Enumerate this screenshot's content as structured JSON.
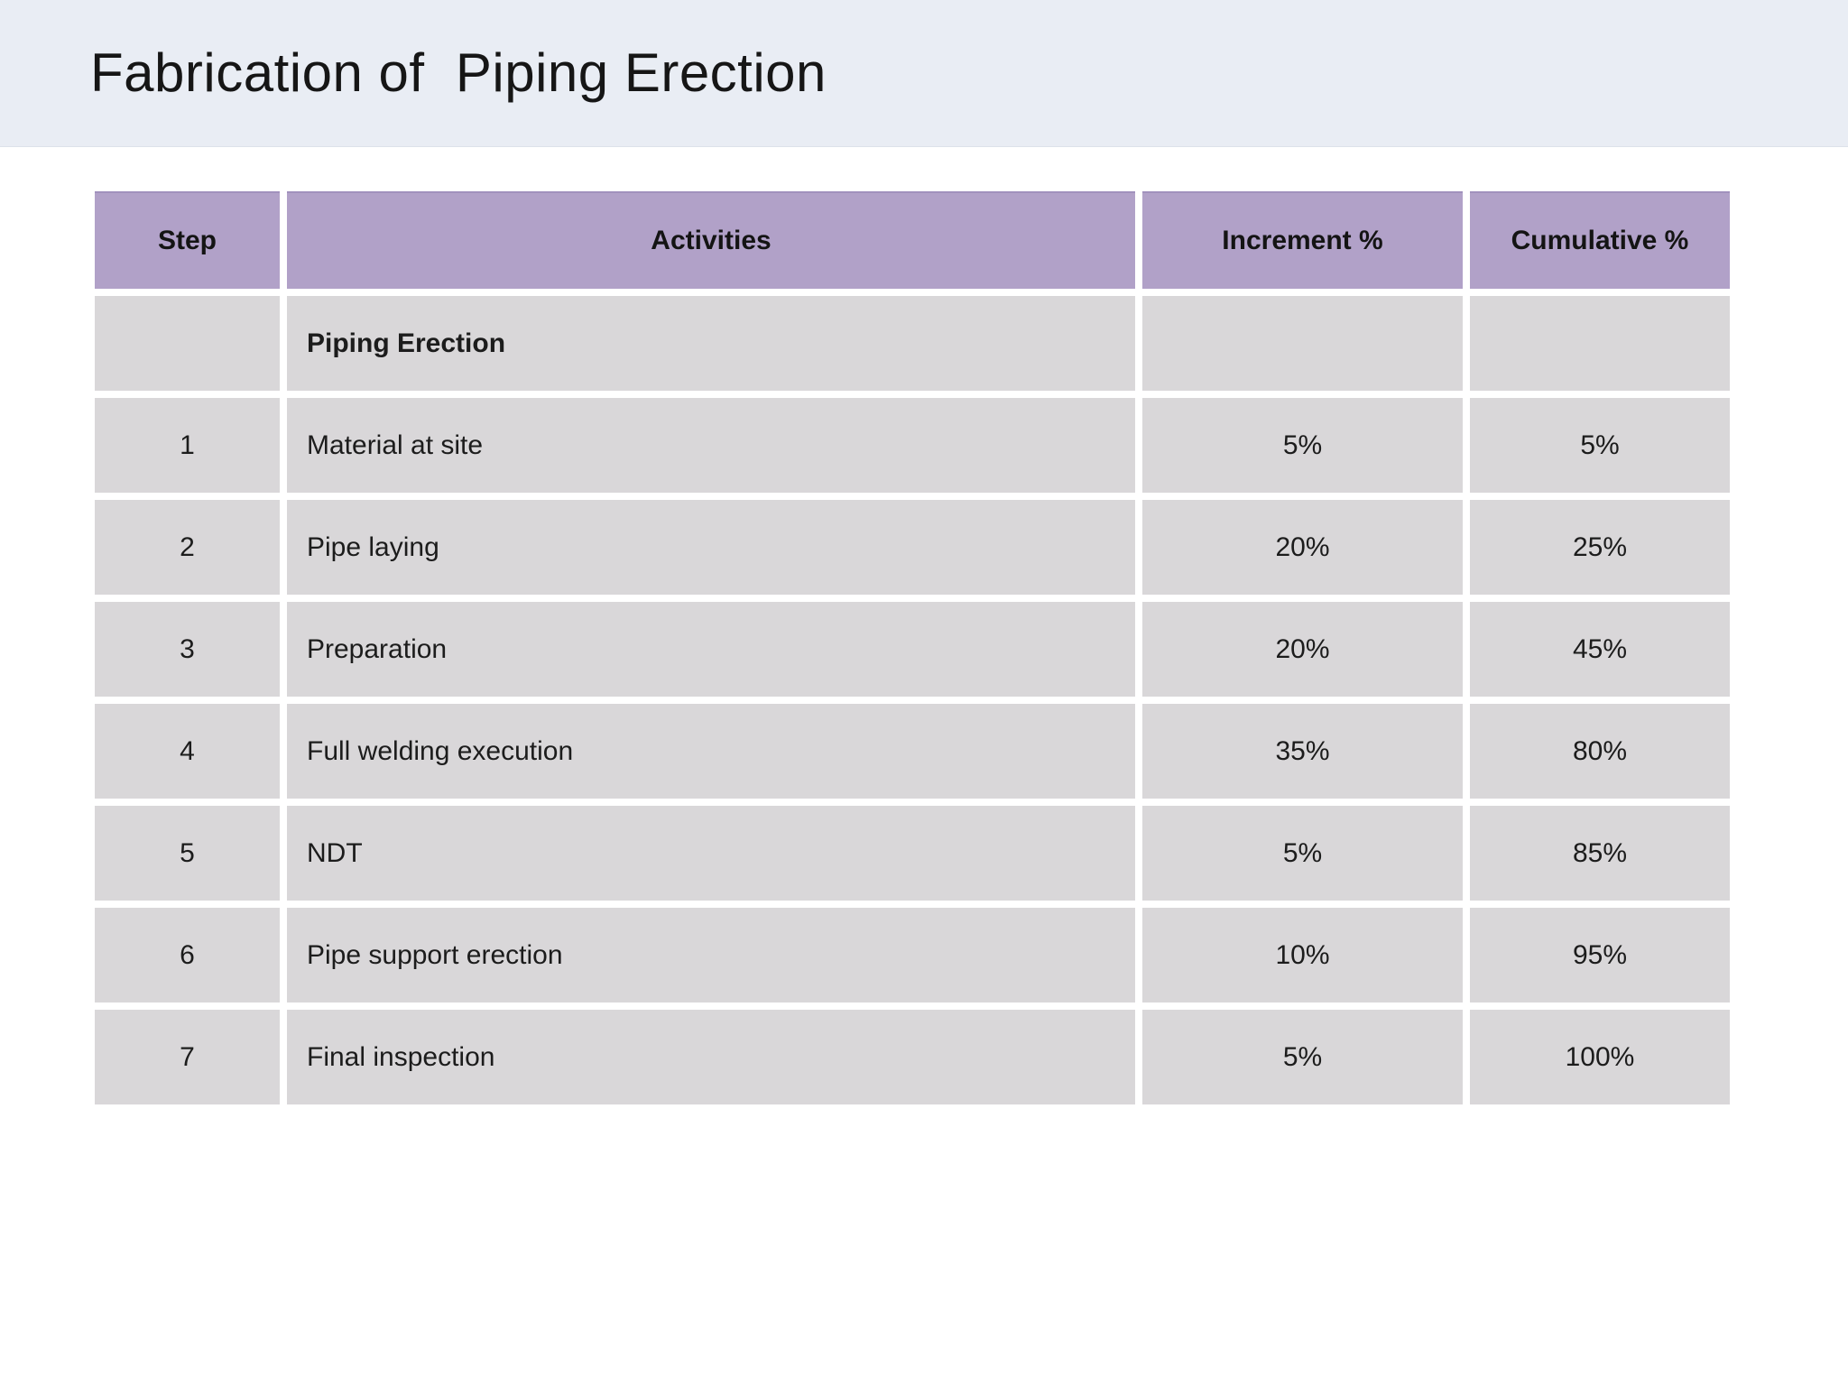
{
  "slide": {
    "title": "Fabrication of  Piping Erection"
  },
  "table": {
    "headers": [
      "Step",
      "Activities",
      "Increment %",
      "Cumulative %"
    ],
    "rows": [
      {
        "step": "",
        "activity": "Piping Erection",
        "increment": "",
        "cumulative": ""
      },
      {
        "step": "1",
        "activity": "Material at site",
        "increment": "5%",
        "cumulative": "5%"
      },
      {
        "step": "2",
        "activity": "Pipe laying",
        "increment": "20%",
        "cumulative": "25%"
      },
      {
        "step": "3",
        "activity": "Preparation",
        "increment": "20%",
        "cumulative": "45%"
      },
      {
        "step": "4",
        "activity": "Full welding execution",
        "increment": "35%",
        "cumulative": "80%"
      },
      {
        "step": "5",
        "activity": "NDT",
        "increment": "5%",
        "cumulative": "85%"
      },
      {
        "step": "6",
        "activity": "Pipe support erection",
        "increment": "10%",
        "cumulative": "95%"
      },
      {
        "step": "7",
        "activity": "Final inspection",
        "increment": "5%",
        "cumulative": "100%"
      }
    ]
  },
  "colors": {
    "title_band_bg": "#e9edf4",
    "header_bg": "#b1a1c8",
    "header_border_top": "#a191bd",
    "row_bg": "#d9d7d9",
    "text": "#1a1a1a",
    "page_bg": "#ffffff"
  }
}
